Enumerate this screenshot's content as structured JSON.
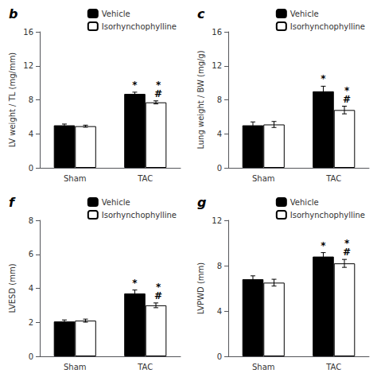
{
  "chart_data": [
    {
      "type": "bar",
      "title": "b",
      "ylabel": "LV weight / TL (mg/mm)",
      "categories": [
        "Sham",
        "TAC"
      ],
      "series": [
        {
          "name": "Vehicle",
          "color": "#000000",
          "values": [
            5.0,
            8.7
          ],
          "errors": [
            0.15,
            0.2
          ]
        },
        {
          "name": "Isorhynchophylline",
          "color": "#ffffff",
          "values": [
            4.9,
            7.7
          ],
          "errors": [
            0.12,
            0.18
          ]
        }
      ],
      "annotations": [
        {
          "text": "*",
          "category": "TAC",
          "series": "Vehicle"
        },
        {
          "text": "#",
          "category": "TAC",
          "series": "Isorhynchophylline"
        },
        {
          "text": "*",
          "category": "TAC",
          "series": "Isorhynchophylline"
        }
      ],
      "ylim": [
        0,
        16
      ],
      "yticks": [
        0,
        4,
        8,
        12,
        16
      ],
      "grid": false,
      "legend": "upper right"
    },
    {
      "type": "bar",
      "title": "c",
      "ylabel": "Lung weight / BW (mg/g)",
      "categories": [
        "Sham",
        "TAC"
      ],
      "series": [
        {
          "name": "Vehicle",
          "color": "#000000",
          "values": [
            5.0,
            9.0
          ],
          "errors": [
            0.4,
            0.6
          ]
        },
        {
          "name": "Isorhynchophylline",
          "color": "#ffffff",
          "values": [
            5.1,
            6.8
          ],
          "errors": [
            0.35,
            0.45
          ]
        }
      ],
      "annotations": [
        {
          "text": "*",
          "category": "TAC",
          "series": "Vehicle"
        },
        {
          "text": "#",
          "category": "TAC",
          "series": "Isorhynchophylline"
        },
        {
          "text": "*",
          "category": "TAC",
          "series": "Isorhynchophylline"
        }
      ],
      "ylim": [
        0,
        16
      ],
      "yticks": [
        0,
        4,
        8,
        12,
        16
      ],
      "grid": false,
      "legend": "upper right"
    },
    {
      "type": "bar",
      "title": "f",
      "ylabel": "LVESD (mm)",
      "categories": [
        "Sham",
        "TAC"
      ],
      "series": [
        {
          "name": "Vehicle",
          "color": "#000000",
          "values": [
            2.05,
            3.7
          ],
          "errors": [
            0.09,
            0.2
          ]
        },
        {
          "name": "Isorhynchophylline",
          "color": "#ffffff",
          "values": [
            2.1,
            3.0
          ],
          "errors": [
            0.09,
            0.14
          ]
        }
      ],
      "annotations": [
        {
          "text": "*",
          "category": "TAC",
          "series": "Vehicle"
        },
        {
          "text": "#",
          "category": "TAC",
          "series": "Isorhynchophylline"
        },
        {
          "text": "*",
          "category": "TAC",
          "series": "Isorhynchophylline"
        }
      ],
      "ylim": [
        0,
        8
      ],
      "yticks": [
        0,
        2,
        4,
        6,
        8
      ],
      "grid": false,
      "legend": "upper right"
    },
    {
      "type": "bar",
      "title": "g",
      "ylabel": "LVPWD (mm)",
      "categories": [
        "Sham",
        "TAC"
      ],
      "series": [
        {
          "name": "Vehicle",
          "color": "#000000",
          "values": [
            6.8,
            8.8
          ],
          "errors": [
            0.3,
            0.35
          ]
        },
        {
          "name": "Isorhynchophylline",
          "color": "#ffffff",
          "values": [
            6.5,
            8.2
          ],
          "errors": [
            0.3,
            0.35
          ]
        }
      ],
      "annotations": [
        {
          "text": "*",
          "category": "TAC",
          "series": "Vehicle"
        },
        {
          "text": "#",
          "category": "TAC",
          "series": "Isorhynchophylline"
        },
        {
          "text": "*",
          "category": "TAC",
          "series": "Isorhynchophylline"
        }
      ],
      "ylim": [
        0,
        12
      ],
      "yticks": [
        0,
        4,
        8,
        12
      ],
      "grid": false,
      "legend": "upper right"
    }
  ]
}
